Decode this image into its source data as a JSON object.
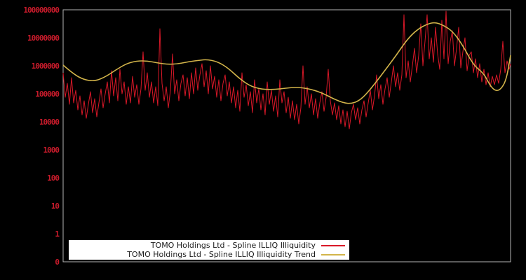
{
  "chart": {
    "background": "#000000",
    "frame_color": "#b3b3b3",
    "y_axis": {
      "label_color": "#c81b2b",
      "tick_labels": [
        "100000000",
        "10000000",
        "1000000",
        "100000",
        "10000",
        "1000",
        "100",
        "10",
        "1",
        "0"
      ]
    },
    "legend": {
      "background": "#ffffff",
      "text_color": "#1a1a1a",
      "entries": [
        {
          "label": "TOMO Holdings Ltd - Spline ILLIQ Illiquidity",
          "color": "#d91828"
        },
        {
          "label": "TOMO Holdings Ltd - Spline ILLIQ Illiquidity Trend",
          "color": "#d2b44a"
        }
      ]
    }
  },
  "chart_data": {
    "type": "line",
    "title": "",
    "xlabel": "",
    "ylabel": "",
    "x_axis": {
      "tick_labels_visible": false
    },
    "y_axis": {
      "scale": "log",
      "ticks": [
        0,
        1,
        10,
        100,
        1000,
        10000,
        100000,
        1000000,
        10000000,
        100000000
      ],
      "ylim": [
        0,
        100000000
      ]
    },
    "grid": false,
    "legend_position": "bottom-center",
    "series": [
      {
        "name": "TOMO Holdings Ltd - Spline ILLIQ Illiquidity",
        "color": "#d91828",
        "points": [
          [
            90,
            562000.0
          ],
          [
            93,
            75000.0
          ],
          [
            96,
            237000.0
          ],
          [
            99,
            42200.0
          ],
          [
            102,
            376000.0
          ],
          [
            105,
            47300.0
          ],
          [
            108,
            133000.0
          ],
          [
            111,
            26600.0
          ],
          [
            114,
            84100.0
          ],
          [
            117,
            17800.0
          ],
          [
            120,
            56200.0
          ],
          [
            123,
            13300.0
          ],
          [
            126,
            42200.0
          ],
          [
            129,
            119000.0
          ],
          [
            132,
            21100.0
          ],
          [
            135,
            66800.0
          ],
          [
            138,
            15000.0
          ],
          [
            141,
            47300.0
          ],
          [
            144,
            150000.0
          ],
          [
            147,
            31600.0
          ],
          [
            150,
            100000.0
          ],
          [
            153,
            266000.0
          ],
          [
            156,
            47300.0
          ],
          [
            159,
            668000.0
          ],
          [
            162,
            84100.0
          ],
          [
            165,
            376000.0
          ],
          [
            168,
            56200.0
          ],
          [
            171,
            750000.0
          ],
          [
            174,
            100000.0
          ],
          [
            177,
            266000.0
          ],
          [
            180,
            42200.0
          ],
          [
            183,
            178000.0
          ],
          [
            186,
            47300.0
          ],
          [
            189,
            422000.0
          ],
          [
            192,
            75000.0
          ],
          [
            195,
            211000.0
          ],
          [
            198,
            42200.0
          ],
          [
            201,
            150000.0
          ],
          [
            204,
            3160000.0
          ],
          [
            207,
            133000.0
          ],
          [
            210,
            562000.0
          ],
          [
            213,
            75000.0
          ],
          [
            216,
            266000.0
          ],
          [
            219,
            47300.0
          ],
          [
            222,
            178000.0
          ],
          [
            225,
            37600.0
          ],
          [
            228,
            21100000.0
          ],
          [
            231,
            237000.0
          ],
          [
            234,
            56200.0
          ],
          [
            237,
            178000.0
          ],
          [
            240,
            31600.0
          ],
          [
            243,
            133000.0
          ],
          [
            246,
            2660000.0
          ],
          [
            249,
            100000.0
          ],
          [
            252,
            316000.0
          ],
          [
            255,
            56200.0
          ],
          [
            258,
            237000.0
          ],
          [
            261,
            473000.0
          ],
          [
            264,
            84100.0
          ],
          [
            267,
            376000.0
          ],
          [
            270,
            66800.0
          ],
          [
            273,
            562000.0
          ],
          [
            276,
            100000.0
          ],
          [
            279,
            841000.0
          ],
          [
            282,
            133000.0
          ],
          [
            285,
            473000.0
          ],
          [
            288,
            1190000.0
          ],
          [
            291,
            178000.0
          ],
          [
            294,
            668000.0
          ],
          [
            297,
            100000.0
          ],
          [
            300,
            1000000.0
          ],
          [
            303,
            150000.0
          ],
          [
            306,
            422000.0
          ],
          [
            309,
            75000.0
          ],
          [
            312,
            316000.0
          ],
          [
            315,
            56200.0
          ],
          [
            318,
            237000.0
          ],
          [
            321,
            473000.0
          ],
          [
            324,
            84100.0
          ],
          [
            327,
            266000.0
          ],
          [
            330,
            47300.0
          ],
          [
            333,
            178000.0
          ],
          [
            336,
            31600.0
          ],
          [
            339,
            133000.0
          ],
          [
            342,
            23700.0
          ],
          [
            345,
            562000.0
          ],
          [
            348,
            75000.0
          ],
          [
            351,
            211000.0
          ],
          [
            354,
            37600.0
          ],
          [
            357,
            119000.0
          ],
          [
            360,
            21100.0
          ],
          [
            363,
            316000.0
          ],
          [
            366,
            47300.0
          ],
          [
            369,
            150000.0
          ],
          [
            372,
            26600.0
          ],
          [
            375,
            100000.0
          ],
          [
            378,
            17800.0
          ],
          [
            381,
            266000.0
          ],
          [
            384,
            42200.0
          ],
          [
            387,
            133000.0
          ],
          [
            390,
            23700.0
          ],
          [
            393,
            84100.0
          ],
          [
            396,
            15000.0
          ],
          [
            399,
            316000.0
          ],
          [
            402,
            47300.0
          ],
          [
            405,
            119000.0
          ],
          [
            408,
            21100.0
          ],
          [
            411,
            75000.0
          ],
          [
            414,
            13300.0
          ],
          [
            417,
            56200.0
          ],
          [
            420,
            11900.0
          ],
          [
            423,
            42200.0
          ],
          [
            426,
            8410.0
          ],
          [
            429,
            31600.0
          ],
          [
            432,
            1000000.0
          ],
          [
            435,
            42200.0
          ],
          [
            438,
            178000.0
          ],
          [
            441,
            31600.0
          ],
          [
            444,
            100000.0
          ],
          [
            447,
            17800.0
          ],
          [
            450,
            66800.0
          ],
          [
            453,
            13300.0
          ],
          [
            456,
            47300.0
          ],
          [
            459,
            119000.0
          ],
          [
            462,
            23700.0
          ],
          [
            465,
            75000.0
          ],
          [
            468,
            750000.0
          ],
          [
            471,
            56200.0
          ],
          [
            474,
            17800.0
          ],
          [
            477,
            47300.0
          ],
          [
            480,
            11900.0
          ],
          [
            483,
            37600.0
          ],
          [
            486,
            8410.0
          ],
          [
            489,
            26600.0
          ],
          [
            492,
            6680.0
          ],
          [
            495,
            23700.0
          ],
          [
            498,
            5620.0
          ],
          [
            501,
            21100.0
          ],
          [
            504,
            42200.0
          ],
          [
            507,
            11900.0
          ],
          [
            510,
            31600.0
          ],
          [
            513,
            8410.0
          ],
          [
            516,
            26600.0
          ],
          [
            519,
            56200.0
          ],
          [
            522,
            15000.0
          ],
          [
            525,
            47300.0
          ],
          [
            528,
            133000.0
          ],
          [
            531,
            26600.0
          ],
          [
            534,
            84100.0
          ],
          [
            537,
            473000.0
          ],
          [
            540,
            66800.0
          ],
          [
            543,
            211000.0
          ],
          [
            546,
            42200.0
          ],
          [
            549,
            150000.0
          ],
          [
            552,
            376000.0
          ],
          [
            555,
            75000.0
          ],
          [
            558,
            266000.0
          ],
          [
            561,
            1000000.0
          ],
          [
            564,
            178000.0
          ],
          [
            567,
            562000.0
          ],
          [
            570,
            133000.0
          ],
          [
            573,
            473000.0
          ],
          [
            576,
            66800000.0
          ],
          [
            579,
            376000.0
          ],
          [
            582,
            1500000.0
          ],
          [
            585,
            266000.0
          ],
          [
            588,
            1000000.0
          ],
          [
            591,
            4220000.0
          ],
          [
            594,
            562000.0
          ],
          [
            597,
            2370000.0
          ],
          [
            600,
            31600000.0
          ],
          [
            603,
            1000000.0
          ],
          [
            606,
            7500000.0
          ],
          [
            609,
            66800000.0
          ],
          [
            612,
            1780000.0
          ],
          [
            615,
            10000000.0
          ],
          [
            618,
            1330000.0
          ],
          [
            621,
            23700000.0
          ],
          [
            624,
            2660000.0
          ],
          [
            627,
            750000.0
          ],
          [
            630,
            42200000.0
          ],
          [
            633,
            1780000.0
          ],
          [
            636,
            89100000.0
          ],
          [
            639,
            1190000.0
          ],
          [
            642,
            7500000.0
          ],
          [
            645,
            17800000.0
          ],
          [
            648,
            1000000.0
          ],
          [
            651,
            4220000.0
          ],
          [
            654,
            23700000.0
          ],
          [
            657,
            841000.0
          ],
          [
            660,
            3160000.0
          ],
          [
            663,
            10000000.0
          ],
          [
            666,
            668000.0
          ],
          [
            669,
            2370000.0
          ],
          [
            672,
            3160000.0
          ],
          [
            675,
            562000.0
          ],
          [
            678,
            1780000.0
          ],
          [
            681,
            376000.0
          ],
          [
            684,
            1190000.0
          ],
          [
            687,
            266000.0
          ],
          [
            690,
            750000.0
          ],
          [
            693,
            211000.0
          ],
          [
            696,
            562000.0
          ],
          [
            699,
            178000.0
          ],
          [
            702,
            422000.0
          ],
          [
            705,
            211000.0
          ],
          [
            708,
            473000.0
          ],
          [
            711,
            237000.0
          ],
          [
            714,
            750000.0
          ],
          [
            717,
            7500000.0
          ],
          [
            720,
            562000.0
          ],
          [
            723,
            1500000.0
          ],
          [
            726,
            750000.0
          ],
          [
            728,
            1190000.0
          ]
        ]
      },
      {
        "name": "TOMO Holdings Ltd - Spline ILLIQ Illiquidity Trend",
        "color": "#d2b44a",
        "points": [
          [
            90,
            1060000.0
          ],
          [
            105,
            501000.0
          ],
          [
            120,
            316000.0
          ],
          [
            135,
            282000.0
          ],
          [
            150,
            398000.0
          ],
          [
            165,
            708000.0
          ],
          [
            180,
            1190000.0
          ],
          [
            195,
            1500000.0
          ],
          [
            210,
            1500000.0
          ],
          [
            225,
            1260000.0
          ],
          [
            240,
            1120000.0
          ],
          [
            255,
            1190000.0
          ],
          [
            270,
            1410000.0
          ],
          [
            285,
            1580000.0
          ],
          [
            295,
            1680000.0
          ],
          [
            310,
            1410000.0
          ],
          [
            325,
            841000.0
          ],
          [
            340,
            376000.0
          ],
          [
            355,
            200000.0
          ],
          [
            370,
            150000.0
          ],
          [
            385,
            141000.0
          ],
          [
            400,
            150000.0
          ],
          [
            415,
            168000.0
          ],
          [
            430,
            168000.0
          ],
          [
            445,
            141000.0
          ],
          [
            460,
            106000.0
          ],
          [
            475,
            66800.0
          ],
          [
            490,
            47300.0
          ],
          [
            500,
            44700.0
          ],
          [
            510,
            53100.0
          ],
          [
            520,
            84100.0
          ],
          [
            535,
            237000.0
          ],
          [
            550,
            750000.0
          ],
          [
            565,
            2370000.0
          ],
          [
            580,
            8410000.0
          ],
          [
            595,
            20000000.0
          ],
          [
            610,
            31600000.0
          ],
          [
            620,
            35500000.0
          ],
          [
            630,
            29900000.0
          ],
          [
            645,
            17800000.0
          ],
          [
            660,
            5310000.0
          ],
          [
            675,
            1060000.0
          ],
          [
            690,
            531000.0
          ],
          [
            698,
            211000.0
          ],
          [
            706,
            126000.0
          ],
          [
            714,
            141000.0
          ],
          [
            722,
            316000.0
          ],
          [
            728,
            2370000.0
          ]
        ]
      }
    ]
  }
}
